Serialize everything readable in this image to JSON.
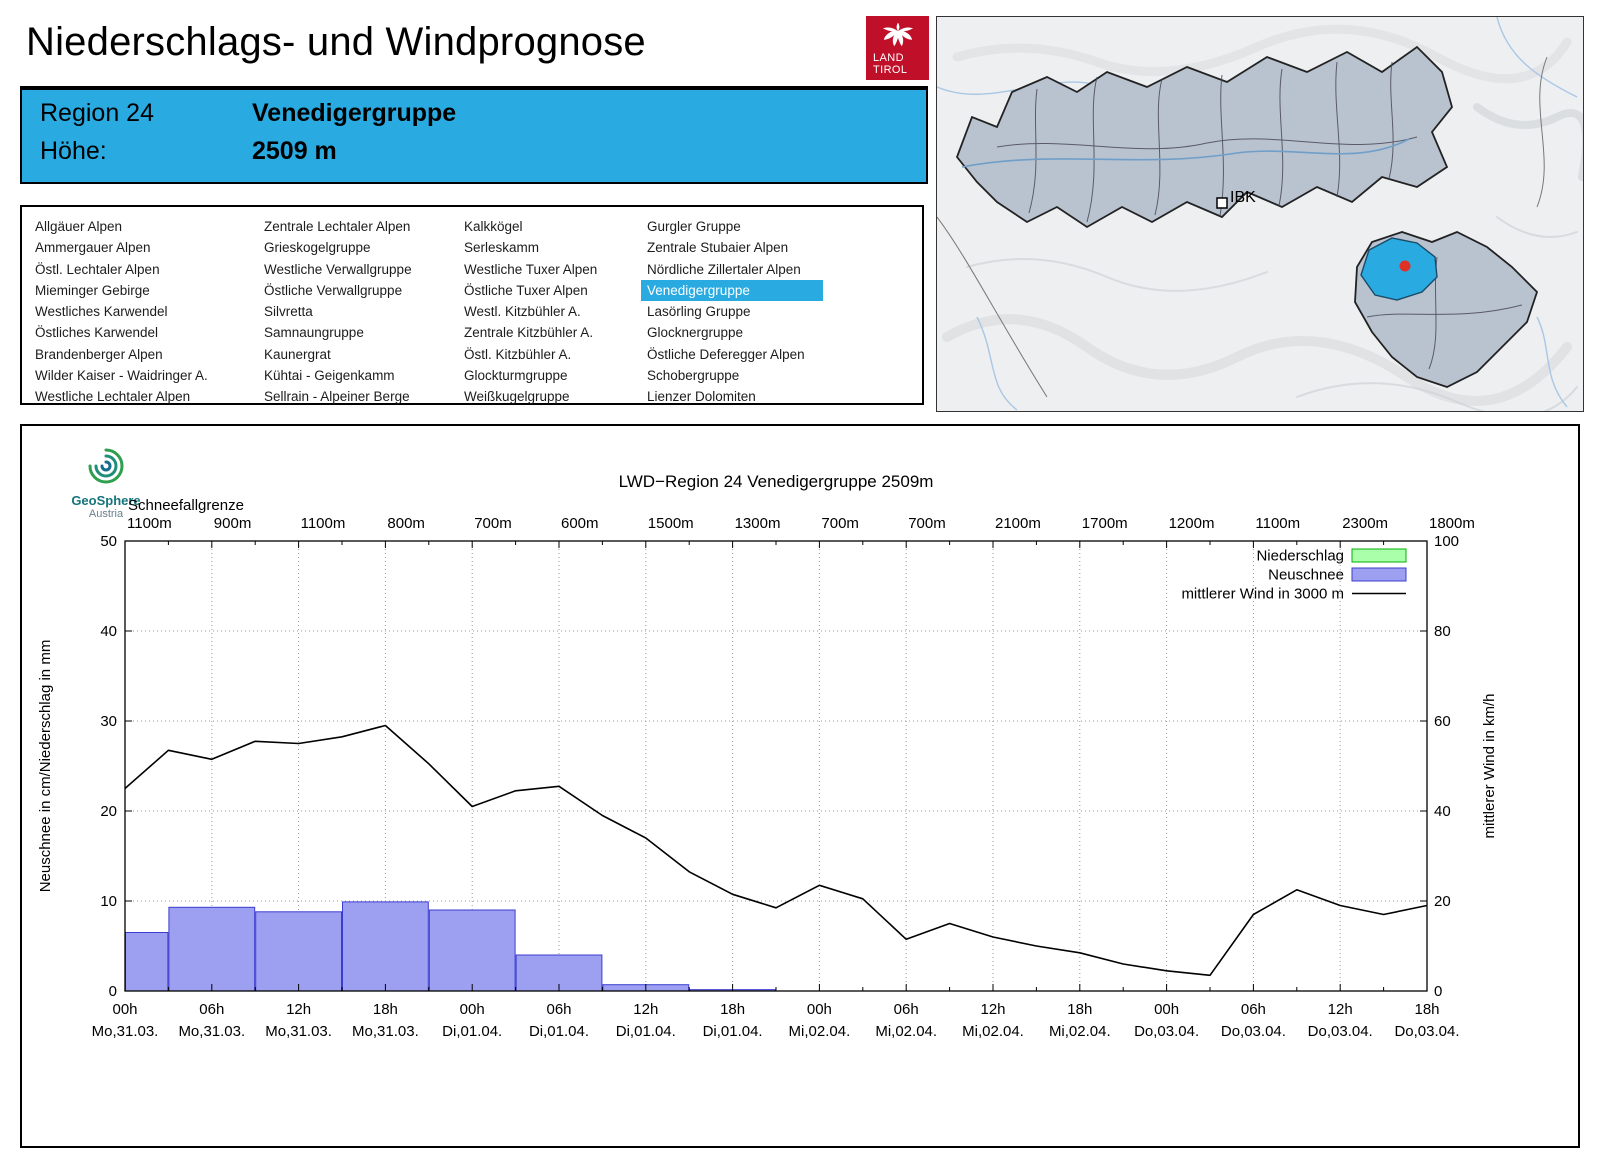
{
  "header": {
    "title": "Niederschlags- und Windprognose",
    "logo_line1": "LAND",
    "logo_line2": "TIROL"
  },
  "colors": {
    "accent_blue": "#29abe2",
    "logo_red": "#c00f28"
  },
  "region_info": {
    "region_label": "Region 24",
    "region_name": "Venedigergruppe",
    "hoehe_label": "Höhe:",
    "hoehe_value": "2509 m"
  },
  "region_list": {
    "selected": "Venedigergruppe",
    "columns": [
      [
        "Allgäuer Alpen",
        "Ammergauer Alpen",
        "Östl. Lechtaler Alpen",
        "Mieminger Gebirge",
        "Westliches Karwendel",
        "Östliches Karwendel",
        "Brandenberger Alpen",
        "Wilder Kaiser - Waidringer A.",
        "Westliche Lechtaler Alpen"
      ],
      [
        "Zentrale Lechtaler Alpen",
        "Grieskogelgruppe",
        "Westliche Verwallgruppe",
        "Östliche Verwallgruppe",
        "Silvretta",
        "Samnaungruppe",
        "Kaunergrat",
        "Kühtai - Geigenkamm",
        "Sellrain - Alpeiner Berge"
      ],
      [
        "Kalkkögel",
        "Serleskamm",
        "Westliche Tuxer Alpen",
        "Östliche Tuxer Alpen",
        "Westl. Kitzbühler A.",
        "Zentrale Kitzbühler A.",
        "Östl. Kitzbühler A.",
        "Glockturmgruppe",
        "Weißkugelgruppe"
      ],
      [
        "Gurgler Gruppe",
        "Zentrale Stubaier Alpen",
        "Nördliche Zillertaler Alpen",
        "Venedigergruppe",
        "Lasörling Gruppe",
        "Glocknergruppe",
        "Östliche Deferegger Alpen",
        "Schobergruppe",
        "Lienzer Dolomiten"
      ]
    ]
  },
  "map": {
    "ibk_label": "IBK"
  },
  "geosphere": {
    "name": "GeoSphere",
    "subtitle": "Austria"
  },
  "chart_data": {
    "type": "bar",
    "title": "LWD−Region 24 Venedigergruppe 2509m",
    "ylabel_left": "Neuschnee in cm/Niederschlag in mm",
    "ylabel_right": "mittlerer Wind in km/h",
    "ylim_left": [
      0,
      50
    ],
    "ylim_right": [
      0,
      100
    ],
    "x_hours_total": 90,
    "x_ticks": [
      {
        "hour": "00h",
        "date": "Mo,31.03."
      },
      {
        "hour": "06h",
        "date": "Mo,31.03."
      },
      {
        "hour": "12h",
        "date": "Mo,31.03."
      },
      {
        "hour": "18h",
        "date": "Mo,31.03."
      },
      {
        "hour": "00h",
        "date": "Di,01.04."
      },
      {
        "hour": "06h",
        "date": "Di,01.04."
      },
      {
        "hour": "12h",
        "date": "Di,01.04."
      },
      {
        "hour": "18h",
        "date": "Di,01.04."
      },
      {
        "hour": "00h",
        "date": "Mi,02.04."
      },
      {
        "hour": "06h",
        "date": "Mi,02.04."
      },
      {
        "hour": "12h",
        "date": "Mi,02.04."
      },
      {
        "hour": "18h",
        "date": "Mi,02.04."
      },
      {
        "hour": "00h",
        "date": "Do,03.04."
      },
      {
        "hour": "06h",
        "date": "Do,03.04."
      },
      {
        "hour": "12h",
        "date": "Do,03.04."
      },
      {
        "hour": "18h",
        "date": "Do,03.04."
      }
    ],
    "schneefallgrenze_label": "Schneefallgrenze",
    "schneefallgrenze": [
      "1100m",
      "900m",
      "1100m",
      "800m",
      "700m",
      "600m",
      "1500m",
      "1300m",
      "700m",
      "700m",
      "2100m",
      "1700m",
      "1200m",
      "1100m",
      "2300m",
      "1800m"
    ],
    "legend": [
      {
        "label": "Niederschlag",
        "type": "box",
        "fill": "#aaffaa",
        "stroke": "#00b000"
      },
      {
        "label": "Neuschnee",
        "type": "box",
        "fill": "#9d9ff0",
        "stroke": "#3c3cd0"
      },
      {
        "label": "mittlerer Wind in 3000 m",
        "type": "line",
        "stroke": "#000000"
      }
    ],
    "style": {
      "neuschnee_fill": "#9d9ff0",
      "neuschnee_stroke": "#3c3cd0",
      "niederschlag_fill": "#aaffaa",
      "niederschlag_stroke": "#00b000",
      "wind_color": "#000000"
    },
    "niederschlag_bars": [],
    "neuschnee_bars": [
      {
        "from_h": 0,
        "to_h": 3,
        "value": 6.5
      },
      {
        "from_h": 3,
        "to_h": 9,
        "value": 9.3
      },
      {
        "from_h": 9,
        "to_h": 15,
        "value": 8.8
      },
      {
        "from_h": 15,
        "to_h": 21,
        "value": 9.9
      },
      {
        "from_h": 21,
        "to_h": 27,
        "value": 9.0
      },
      {
        "from_h": 27,
        "to_h": 33,
        "value": 4.0
      },
      {
        "from_h": 33,
        "to_h": 39,
        "value": 0.7
      },
      {
        "from_h": 39,
        "to_h": 45,
        "value": 0.15
      }
    ],
    "wind": {
      "t_hours": [
        0,
        3,
        6,
        9,
        12,
        15,
        18,
        21,
        24,
        27,
        30,
        33,
        36,
        39,
        42,
        45,
        48,
        51,
        54,
        57,
        60,
        63,
        66,
        69,
        72,
        75,
        78,
        81,
        84,
        87,
        90
      ],
      "kmh": [
        45,
        53.5,
        51.5,
        55.5,
        55,
        56.5,
        59,
        50.5,
        41,
        44.5,
        45.5,
        39,
        34,
        26.5,
        21.5,
        18.5,
        23.5,
        20.5,
        11.5,
        15,
        12,
        10,
        8.5,
        6,
        4.5,
        3.5,
        17,
        22.5,
        19,
        17,
        19
      ]
    }
  }
}
